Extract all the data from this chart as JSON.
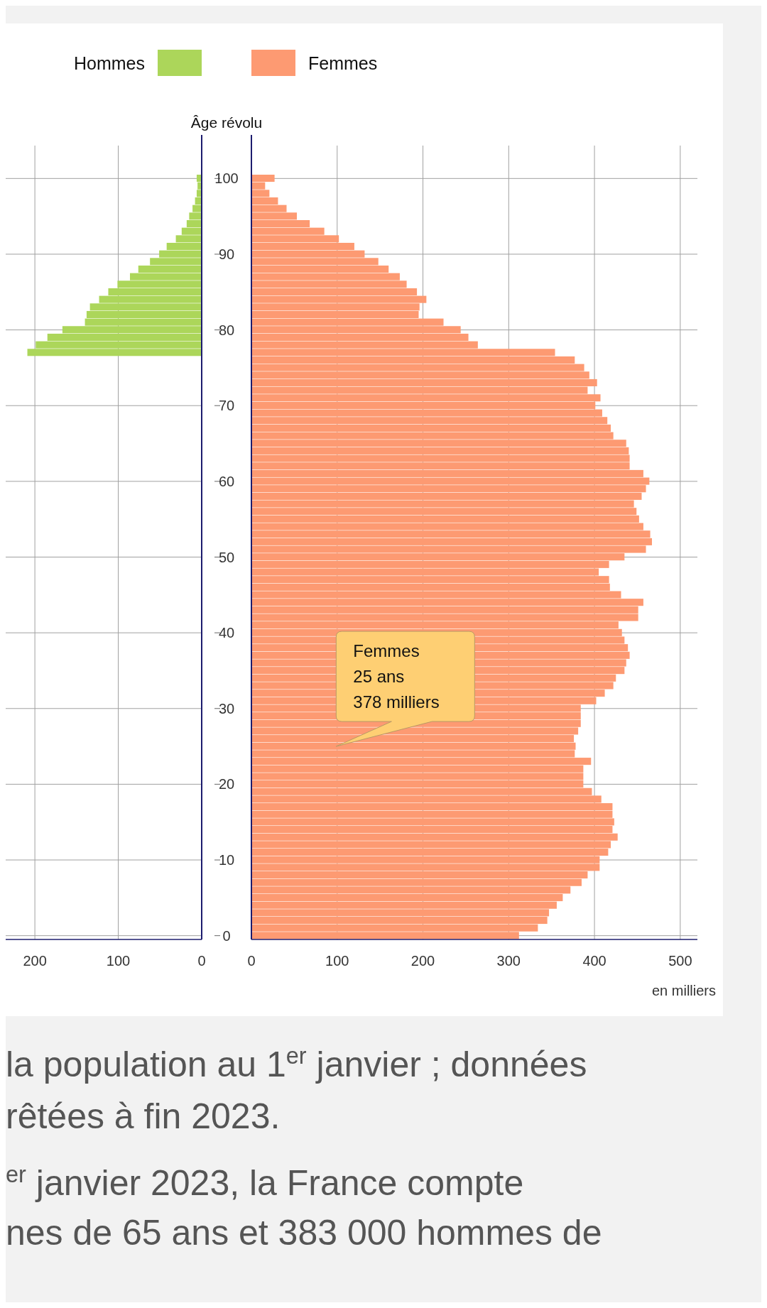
{
  "chart_data": [
    {
      "type": "bar",
      "orientation": "horizontal",
      "categories": [
        "100",
        null,
        null,
        null,
        null,
        null,
        null,
        null,
        null,
        null,
        "90",
        null,
        null,
        null,
        null,
        null,
        null,
        null,
        null,
        null,
        "80",
        null,
        null,
        null,
        null,
        null,
        null,
        null,
        null,
        null,
        "70",
        null,
        null,
        null,
        null,
        null,
        null,
        null,
        null,
        null,
        "60",
        null,
        null,
        null,
        null,
        null,
        null,
        null,
        null,
        null,
        "50",
        null,
        null,
        null,
        null,
        null,
        null,
        null,
        null,
        null,
        "40",
        null,
        null,
        null,
        null,
        null,
        null,
        null,
        null,
        null,
        "30",
        null,
        null,
        null,
        null,
        null,
        null,
        null,
        null,
        null,
        "20",
        null,
        null,
        null,
        null,
        null,
        null,
        null,
        null,
        null,
        "10",
        null,
        null,
        null,
        null,
        null,
        null,
        null,
        null,
        null,
        "0"
      ],
      "series": [
        {
          "name": "Hommes",
          "color": "#acd65a",
          "values": [
            6,
            5,
            6,
            8,
            11,
            15,
            18,
            24,
            31,
            42,
            51,
            62,
            76,
            86,
            101,
            112,
            123,
            134,
            138,
            140,
            167,
            185,
            199,
            209,
            null,
            null,
            null,
            null,
            null,
            null,
            null,
            null,
            null,
            null,
            null,
            null,
            null,
            null,
            null,
            null,
            null,
            null,
            null,
            null,
            null,
            null,
            null,
            null,
            null,
            null,
            null,
            null,
            null,
            null,
            null,
            null,
            null,
            null,
            null,
            null,
            null,
            null,
            null,
            null,
            null,
            null,
            null,
            null,
            null,
            null,
            null,
            null,
            null,
            null,
            null,
            null,
            null,
            null,
            null,
            null,
            null,
            null,
            null,
            null,
            null,
            null,
            null,
            null,
            null,
            null,
            null,
            null,
            null,
            null,
            null,
            null,
            null,
            null,
            null,
            null,
            null
          ]
        }
      ],
      "xlim": [
        235,
        0
      ],
      "xticks": [
        200,
        100,
        0
      ],
      "grid": true,
      "legend": "top",
      "tick_labels": "x"
    },
    {
      "type": "bar",
      "orientation": "horizontal",
      "categories": [
        "100",
        null,
        null,
        null,
        null,
        null,
        null,
        null,
        null,
        null,
        "90",
        null,
        null,
        null,
        null,
        null,
        null,
        null,
        null,
        null,
        "80",
        null,
        null,
        null,
        null,
        null,
        null,
        null,
        null,
        null,
        "70",
        null,
        null,
        null,
        null,
        null,
        null,
        null,
        null,
        null,
        "60",
        null,
        null,
        null,
        null,
        null,
        null,
        null,
        null,
        null,
        "50",
        null,
        null,
        null,
        null,
        null,
        null,
        null,
        null,
        null,
        "40",
        null,
        null,
        null,
        null,
        null,
        null,
        null,
        null,
        null,
        "30",
        null,
        null,
        null,
        null,
        null,
        null,
        null,
        null,
        null,
        "20",
        null,
        null,
        null,
        null,
        null,
        null,
        null,
        null,
        null,
        "10",
        null,
        null,
        null,
        null,
        null,
        null,
        null,
        null,
        null,
        "0"
      ],
      "series": [
        {
          "name": "Femmes",
          "color": "#fd9a72",
          "values": [
            27,
            16,
            21,
            31,
            41,
            53,
            68,
            85,
            102,
            120,
            132,
            148,
            160,
            173,
            181,
            193,
            204,
            196,
            195,
            224,
            244,
            253,
            264,
            354,
            377,
            388,
            394,
            403,
            392,
            407,
            401,
            409,
            415,
            419,
            422,
            437,
            440,
            441,
            441,
            457,
            464,
            460,
            455,
            446,
            449,
            452,
            457,
            465,
            467,
            460,
            435,
            417,
            405,
            417,
            418,
            431,
            457,
            451,
            451,
            428,
            432,
            435,
            439,
            441,
            437,
            435,
            425,
            422,
            412,
            402,
            384,
            384,
            384,
            381,
            376,
            378,
            377,
            396,
            387,
            387,
            387,
            397,
            408,
            421,
            421,
            423,
            421,
            427,
            419,
            416,
            406,
            406,
            392,
            385,
            372,
            363,
            356,
            347,
            345,
            334,
            312
          ]
        }
      ],
      "xlim": [
        0,
        520
      ],
      "xticks": [
        0,
        100,
        200,
        300,
        400,
        500
      ],
      "grid": true,
      "legend": "top",
      "ylabel": "Âge révolu",
      "xlabel": "en milliers",
      "annotations": [
        "Femmes\n25 ans\n378 milliers",
        "la population au 1$^{er}$ janvier ; données",
        "rêtées à fin 2023.",
        "$^{er}$ janvier 2023, la France compte",
        "nes de 65 ans et 383 000 hommes de"
      ]
    }
  ]
}
